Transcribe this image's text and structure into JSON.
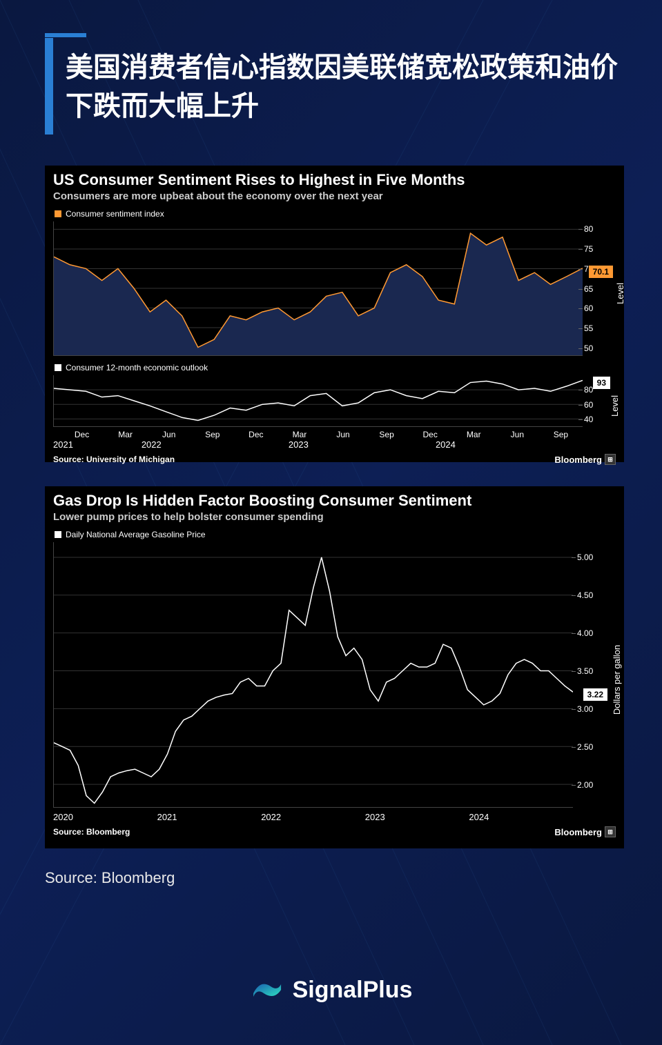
{
  "page": {
    "title": "美国消费者信心指数因美联储宽松政策和油价下跌而大幅上升",
    "outer_source": "Source: Bloomberg",
    "logo_text": "SignalPlus",
    "bg_color": "#0a1840",
    "accent_color": "#2a7fd4",
    "logo_gradient": [
      "#1a5fb0",
      "#2de0c0"
    ]
  },
  "chart1": {
    "title": "US Consumer Sentiment Rises to Highest in Five Months",
    "subtitle": "Consumers are more upbeat about the economy over the next year",
    "source": "Source: University of Michigan",
    "bloomberg": "Bloomberg",
    "top": {
      "type": "area",
      "legend": "Consumer sentiment index",
      "legend_color": "#ff9933",
      "line_color": "#ff9933",
      "fill_color": "#1a2850",
      "ylim": [
        48,
        82
      ],
      "yticks": [
        50,
        55,
        60,
        65,
        70,
        75,
        80
      ],
      "ylabel": "Level",
      "end_value": "70.1",
      "end_value_bg": "#ff9933",
      "values": [
        73,
        71,
        70,
        67,
        70,
        65,
        59,
        62,
        58,
        50,
        52,
        58,
        57,
        59,
        60,
        57,
        59,
        63,
        64,
        58,
        60,
        69,
        71,
        68,
        62,
        61,
        79,
        76,
        78,
        67,
        69,
        66,
        68,
        70.1
      ]
    },
    "bottom": {
      "type": "line",
      "legend": "Consumer 12-month economic outlook",
      "legend_color": "#ffffff",
      "line_color": "#ffffff",
      "ylim": [
        30,
        100
      ],
      "yticks": [
        40,
        60,
        80
      ],
      "ylabel": "Level",
      "end_value": "93",
      "end_value_bg": "#ffffff",
      "values": [
        82,
        80,
        78,
        70,
        72,
        65,
        58,
        50,
        42,
        38,
        45,
        55,
        52,
        60,
        62,
        58,
        72,
        75,
        58,
        62,
        76,
        80,
        72,
        68,
        78,
        76,
        90,
        92,
        88,
        80,
        82,
        78,
        85,
        93
      ]
    },
    "x_months": [
      "Dec",
      "Mar",
      "Jun",
      "Sep",
      "Dec",
      "Mar",
      "Jun",
      "Sep",
      "Dec",
      "Mar",
      "Jun",
      "Sep"
    ],
    "x_years": [
      "2021",
      "2022",
      "2023",
      "2024"
    ]
  },
  "chart2": {
    "title": "Gas Drop Is Hidden Factor Boosting Consumer Sentiment",
    "subtitle": "Lower pump prices to help bolster consumer spending",
    "source": "Source: Bloomberg",
    "bloomberg": "Bloomberg",
    "type": "line",
    "legend": "Daily National Average Gasoline Price",
    "legend_color": "#ffffff",
    "line_color": "#ffffff",
    "ylim": [
      1.7,
      5.2
    ],
    "yticks": [
      "2.00",
      "2.50",
      "3.00",
      "3.50",
      "4.00",
      "4.50",
      "5.00"
    ],
    "ylabel": "Dollars per gallon",
    "end_value": "3.22",
    "end_value_bg": "#ffffff",
    "x_years": [
      "2020",
      "2021",
      "2022",
      "2023",
      "2024"
    ],
    "values": [
      2.55,
      2.5,
      2.45,
      2.25,
      1.85,
      1.75,
      1.9,
      2.1,
      2.15,
      2.18,
      2.2,
      2.15,
      2.1,
      2.2,
      2.4,
      2.7,
      2.85,
      2.9,
      3.0,
      3.1,
      3.15,
      3.18,
      3.2,
      3.35,
      3.4,
      3.3,
      3.3,
      3.5,
      3.6,
      4.3,
      4.2,
      4.1,
      4.6,
      5.0,
      4.55,
      3.95,
      3.7,
      3.8,
      3.65,
      3.25,
      3.1,
      3.35,
      3.4,
      3.5,
      3.6,
      3.55,
      3.55,
      3.6,
      3.85,
      3.8,
      3.55,
      3.25,
      3.15,
      3.05,
      3.1,
      3.2,
      3.45,
      3.6,
      3.65,
      3.6,
      3.5,
      3.5,
      3.4,
      3.3,
      3.22
    ]
  }
}
